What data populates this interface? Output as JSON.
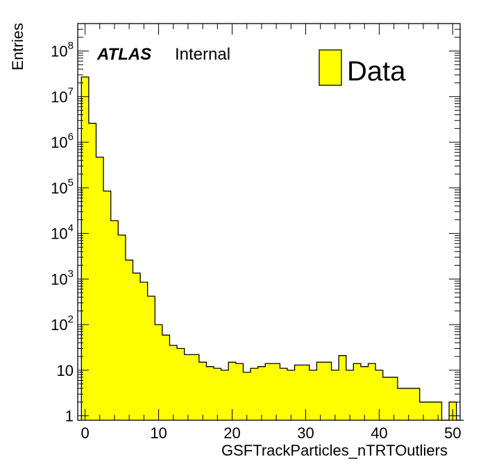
{
  "chart_data": {
    "type": "bar",
    "style": "histogram",
    "xlabel": "GSFTrackParticles_nTRTOutliers",
    "ylabel": "Entries",
    "label_bold": "ATLAS",
    "label_status": "Internal",
    "xlim": [
      -1,
      51
    ],
    "ylim": [
      0.8,
      400000000
    ],
    "y_scale": "log",
    "x_ticks": [
      0,
      10,
      20,
      30,
      40,
      50
    ],
    "x_tick_labels": [
      "0",
      "10",
      "20",
      "30",
      "40",
      "50"
    ],
    "y_ticks": [
      1,
      10,
      100,
      1000,
      10000,
      100000,
      1000000,
      10000000,
      100000000
    ],
    "y_tick_labels": [
      {
        "base": "1",
        "exp": ""
      },
      {
        "base": "10",
        "exp": ""
      },
      {
        "base": "10",
        "exp": "2"
      },
      {
        "base": "10",
        "exp": "3"
      },
      {
        "base": "10",
        "exp": "4"
      },
      {
        "base": "10",
        "exp": "5"
      },
      {
        "base": "10",
        "exp": "6"
      },
      {
        "base": "10",
        "exp": "7"
      },
      {
        "base": "10",
        "exp": "8"
      }
    ],
    "bin_width": 1,
    "bin_start": -0.5,
    "series": [
      {
        "name": "Data",
        "color": "#ffff00",
        "edge_color": "#000000",
        "values": [
          27000000,
          2600000,
          470000,
          85000,
          19000,
          9200,
          2600,
          1350,
          850,
          420,
          100,
          59,
          35,
          30,
          22,
          22,
          15,
          12,
          11,
          10,
          15,
          14,
          9,
          11,
          12,
          14,
          14,
          11,
          10,
          13,
          13,
          10,
          15,
          15,
          10,
          21,
          10,
          14,
          12,
          14,
          10,
          7,
          7,
          4,
          4,
          4,
          2,
          2,
          2,
          0,
          2,
          0
        ]
      }
    ],
    "legend": {
      "position": "top-right",
      "entries": [
        "Data"
      ]
    },
    "grid": false
  }
}
